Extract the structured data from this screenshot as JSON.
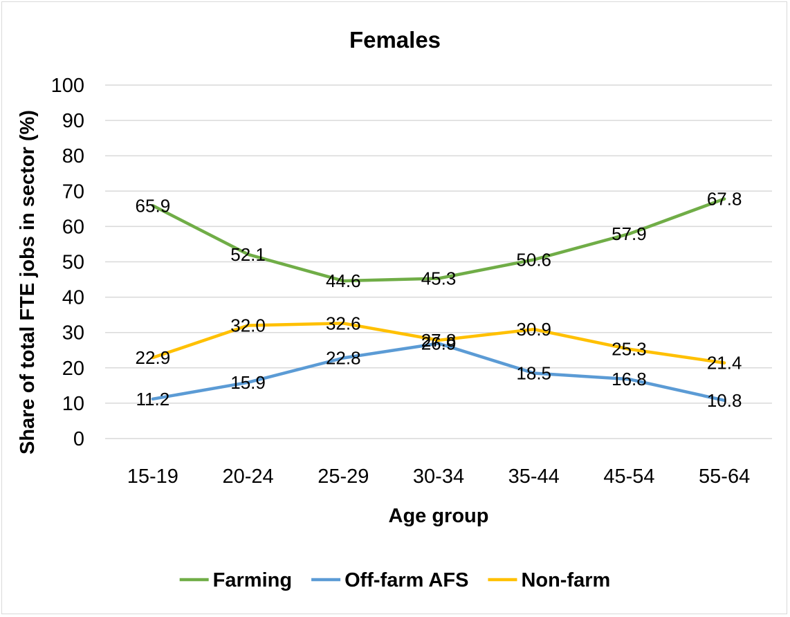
{
  "chart_data": {
    "type": "line",
    "title": "Females",
    "xlabel": "Age group",
    "ylabel": "Share of total FTE jobs in sector (%)",
    "categories": [
      "15-19",
      "20-24",
      "25-29",
      "30-34",
      "35-44",
      "45-54",
      "55-64"
    ],
    "ylim": [
      0,
      100
    ],
    "yticks": [
      0,
      10,
      20,
      30,
      40,
      50,
      60,
      70,
      80,
      90,
      100
    ],
    "grid": true,
    "legend_position": "bottom",
    "series": [
      {
        "name": "Farming",
        "color": "#70ad47",
        "values": [
          65.9,
          52.1,
          44.6,
          45.3,
          50.6,
          57.9,
          67.8
        ],
        "labels": [
          "65.9",
          "52.1",
          "44.6",
          "45.3",
          "50.6",
          "57.9",
          "67.8"
        ]
      },
      {
        "name": "Off-farm AFS",
        "color": "#5b9bd5",
        "values": [
          11.2,
          15.9,
          22.8,
          26.9,
          18.5,
          16.8,
          10.8
        ],
        "labels": [
          "11.2",
          "15.9",
          "22.8",
          "26.9",
          "18.5",
          "16.8",
          "10.8"
        ]
      },
      {
        "name": "Non-farm",
        "color": "#ffc000",
        "values": [
          22.9,
          32.0,
          32.6,
          27.8,
          30.9,
          25.3,
          21.4
        ],
        "labels": [
          "22.9",
          "32.0",
          "32.6",
          "27.8",
          "30.9",
          "25.3",
          "21.4"
        ]
      }
    ]
  }
}
